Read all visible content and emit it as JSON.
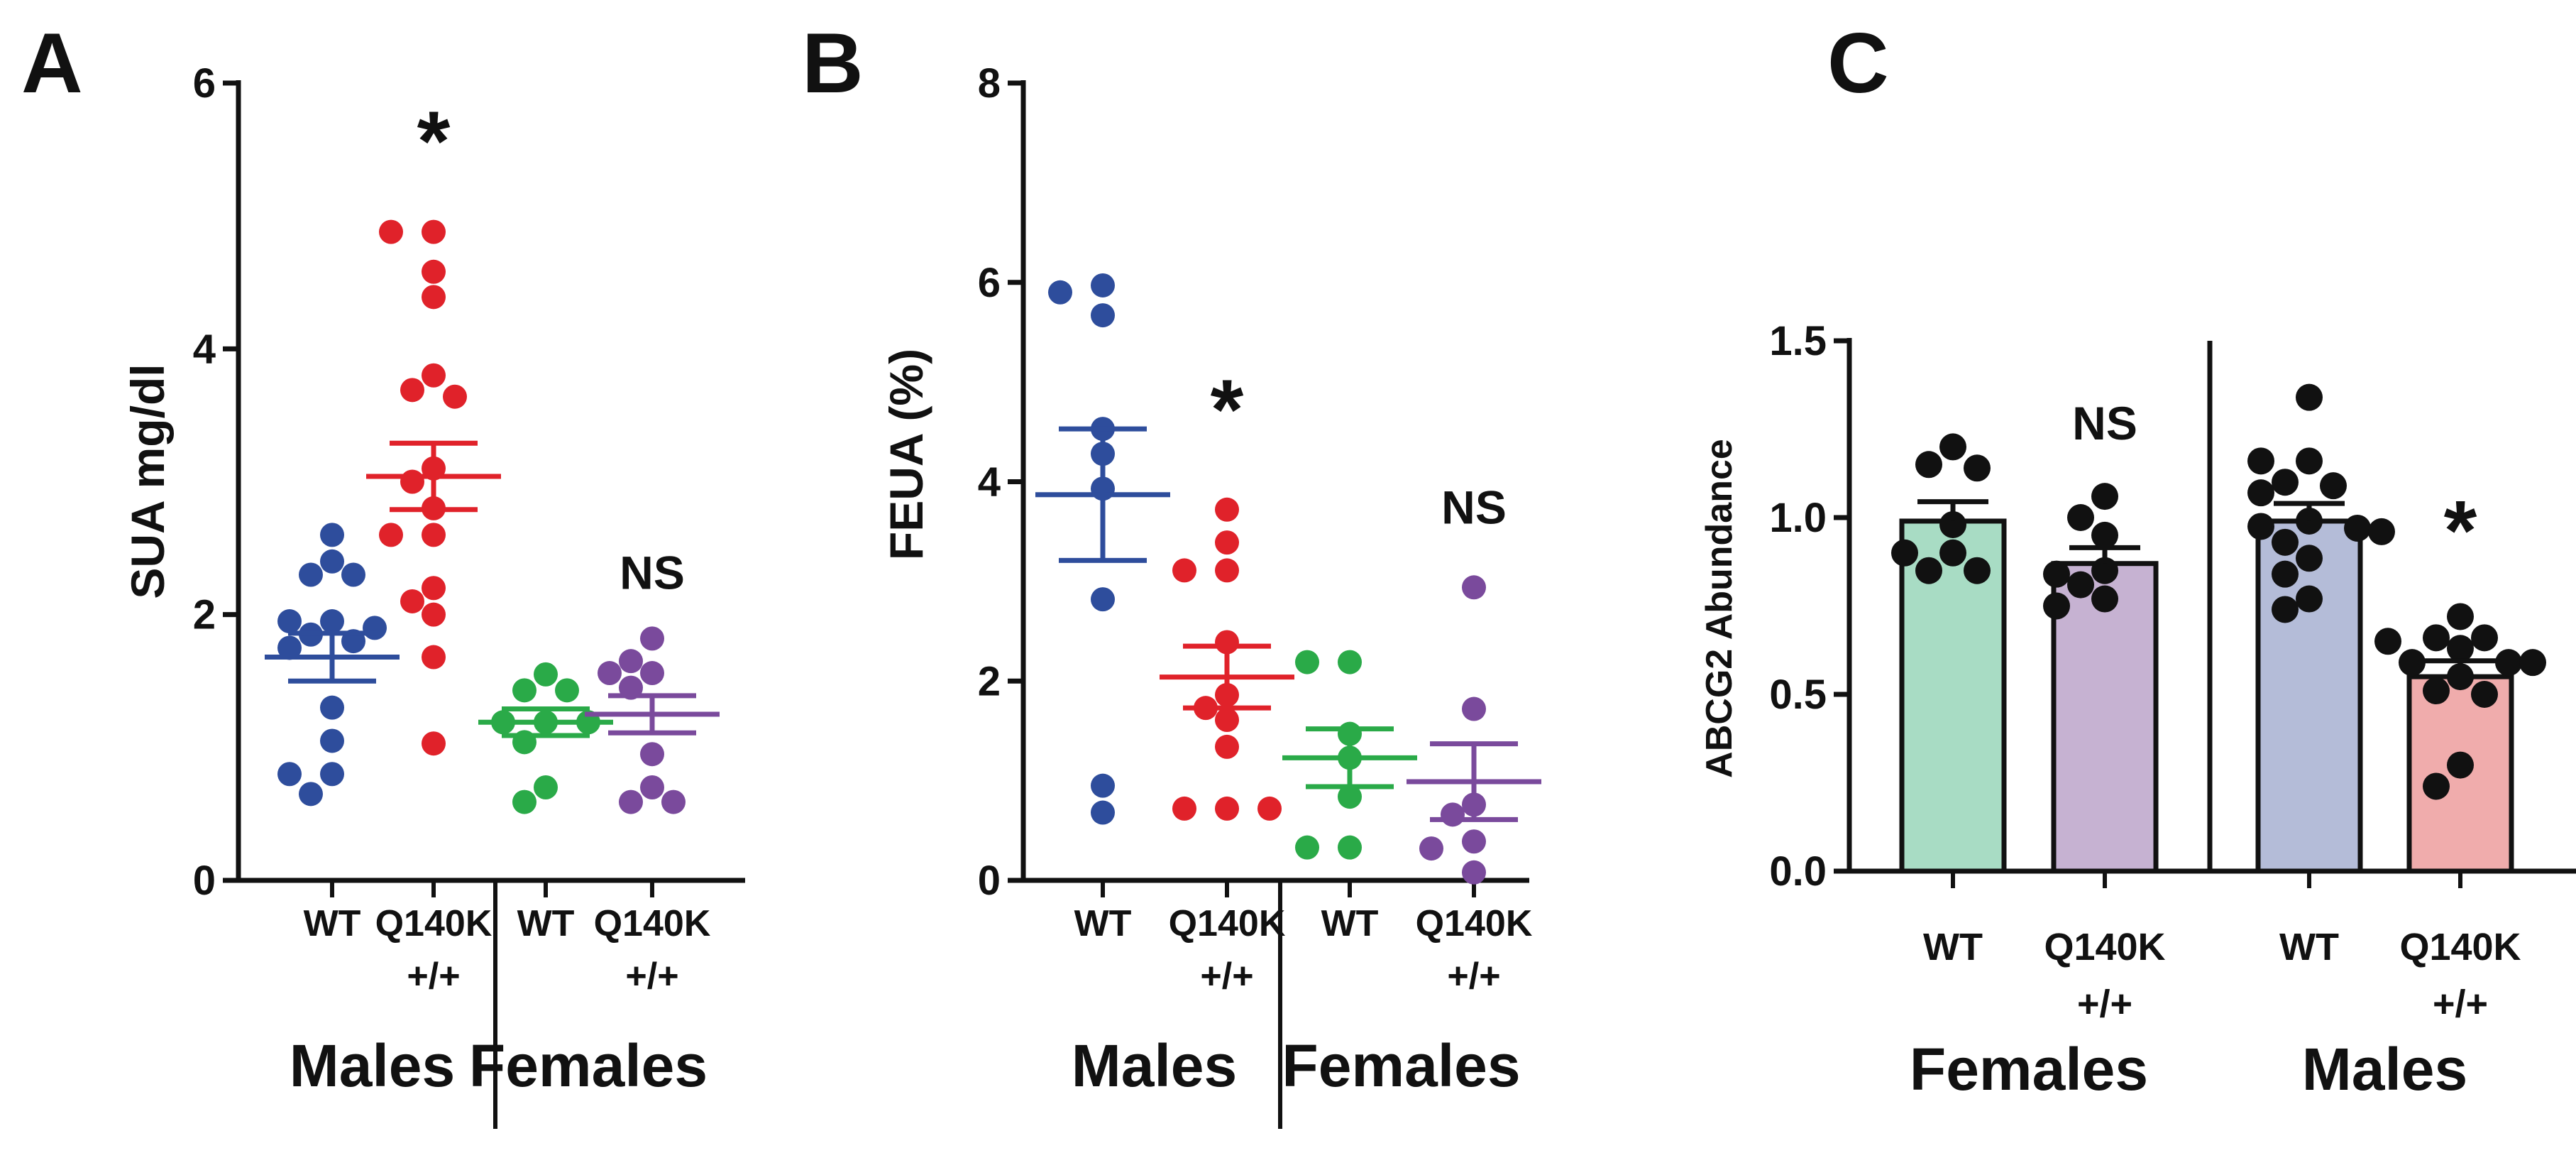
{
  "chart_data": [
    {
      "panel": "A",
      "type": "scatter",
      "ylabel": "SUA mg/dl",
      "ylim": [
        0,
        6
      ],
      "yticks": [
        "0",
        "2",
        "4",
        "6"
      ],
      "ytick_values": [
        0,
        2,
        4,
        6
      ],
      "groups": [
        {
          "label": "Males",
          "categories": [
            0,
            1
          ]
        },
        {
          "label": "Females",
          "categories": [
            2,
            3
          ]
        }
      ],
      "categories": [
        {
          "name": "WT",
          "sub": "",
          "color": "#2e4d9c",
          "mean": 1.68,
          "sem": 0.18,
          "values": [
            2.6,
            2.4,
            2.3,
            2.3,
            1.95,
            1.95,
            1.9,
            1.85,
            1.8,
            1.75,
            1.3,
            1.05,
            0.8,
            0.8,
            0.65
          ],
          "annotation": ""
        },
        {
          "name": "Q140K",
          "sub": "+/+",
          "color": "#e0222a",
          "mean": 3.04,
          "sem": 0.25,
          "values": [
            4.88,
            4.88,
            4.58,
            4.39,
            3.8,
            3.69,
            3.64,
            3.1,
            3.0,
            2.8,
            2.6,
            2.6,
            2.2,
            2.1,
            2.0,
            1.68,
            1.03
          ],
          "annotation": "*"
        },
        {
          "name": "WT",
          "sub": "",
          "color": "#2aaa48",
          "mean": 1.19,
          "sem": 0.1,
          "values": [
            1.55,
            1.43,
            1.43,
            1.19,
            1.19,
            1.19,
            1.04,
            0.7,
            0.59
          ],
          "annotation": ""
        },
        {
          "name": "Q140K",
          "sub": "+/+",
          "color": "#7a4a9c",
          "mean": 1.25,
          "sem": 0.14,
          "values": [
            1.82,
            1.65,
            1.56,
            1.56,
            1.45,
            0.95,
            0.7,
            0.59,
            0.59
          ],
          "annotation": "NS"
        }
      ]
    },
    {
      "panel": "B",
      "type": "scatter",
      "ylabel": "FEUA (%)",
      "ylim": [
        0,
        8
      ],
      "yticks": [
        "0",
        "2",
        "4",
        "6",
        "8"
      ],
      "ytick_values": [
        0,
        2,
        4,
        6,
        8
      ],
      "groups": [
        {
          "label": "Males",
          "categories": [
            0,
            1
          ]
        },
        {
          "label": "Females",
          "categories": [
            2,
            3
          ]
        }
      ],
      "categories": [
        {
          "name": "WT",
          "sub": "",
          "color": "#2e4d9c",
          "mean": 3.87,
          "sem": 0.66,
          "values": [
            5.97,
            5.9,
            5.67,
            4.53,
            4.28,
            3.93,
            2.82,
            0.95,
            0.68
          ],
          "annotation": ""
        },
        {
          "name": "Q140K",
          "sub": "+/+",
          "color": "#e0222a",
          "mean": 2.04,
          "sem": 0.31,
          "values": [
            3.72,
            3.39,
            3.11,
            3.11,
            2.39,
            1.86,
            1.73,
            1.61,
            1.34,
            0.72,
            0.72,
            0.72
          ],
          "annotation": "*"
        },
        {
          "name": "WT",
          "sub": "",
          "color": "#2aaa48",
          "mean": 1.23,
          "sem": 0.29,
          "values": [
            2.19,
            2.19,
            1.47,
            1.23,
            0.84,
            0.33,
            0.33
          ],
          "annotation": ""
        },
        {
          "name": "Q140K",
          "sub": "+/+",
          "color": "#7a4a9c",
          "mean": 0.99,
          "sem": 0.38,
          "values": [
            2.94,
            1.72,
            0.76,
            0.66,
            0.39,
            0.32,
            0.08
          ],
          "annotation": "NS"
        }
      ]
    },
    {
      "panel": "C",
      "type": "bar",
      "ylabel": "ABCG2 Abundance",
      "ylim": [
        0,
        1.5
      ],
      "yticks": [
        "0.0",
        "0.5",
        "1.0",
        "1.5"
      ],
      "ytick_values": [
        0,
        0.5,
        1.0,
        1.5
      ],
      "groups": [
        {
          "label": "Females",
          "categories": [
            0,
            1
          ]
        },
        {
          "label": "Males",
          "categories": [
            2,
            3
          ]
        }
      ],
      "categories": [
        {
          "name": "WT",
          "sub": "",
          "color": "#a8dcc4",
          "mean": 0.99,
          "sem": 0.055,
          "values": [
            1.2,
            1.15,
            1.14,
            0.98,
            0.9,
            0.9,
            0.85,
            0.85
          ],
          "annotation": ""
        },
        {
          "name": "Q140K",
          "sub": "+/+",
          "color": "#c6b2d2",
          "mean": 0.87,
          "sem": 0.045,
          "values": [
            1.06,
            1.0,
            0.95,
            0.85,
            0.84,
            0.81,
            0.77,
            0.75
          ],
          "annotation": "NS"
        },
        {
          "name": "WT",
          "sub": "",
          "color": "#b4bcd8",
          "mean": 0.99,
          "sem": 0.05,
          "values": [
            1.34,
            1.16,
            1.16,
            1.1,
            1.09,
            1.07,
            0.99,
            0.975,
            0.96,
            0.93,
            0.885,
            0.84,
            0.77,
            0.74,
            0.97
          ],
          "annotation": ""
        },
        {
          "name": "Q140K",
          "sub": "+/+",
          "color": "#f0acac",
          "mean": 0.55,
          "sem": 0.045,
          "values": [
            0.72,
            0.66,
            0.66,
            0.65,
            0.63,
            0.59,
            0.59,
            0.59,
            0.55,
            0.51,
            0.5,
            0.3,
            0.24
          ],
          "annotation": "*"
        }
      ]
    }
  ]
}
